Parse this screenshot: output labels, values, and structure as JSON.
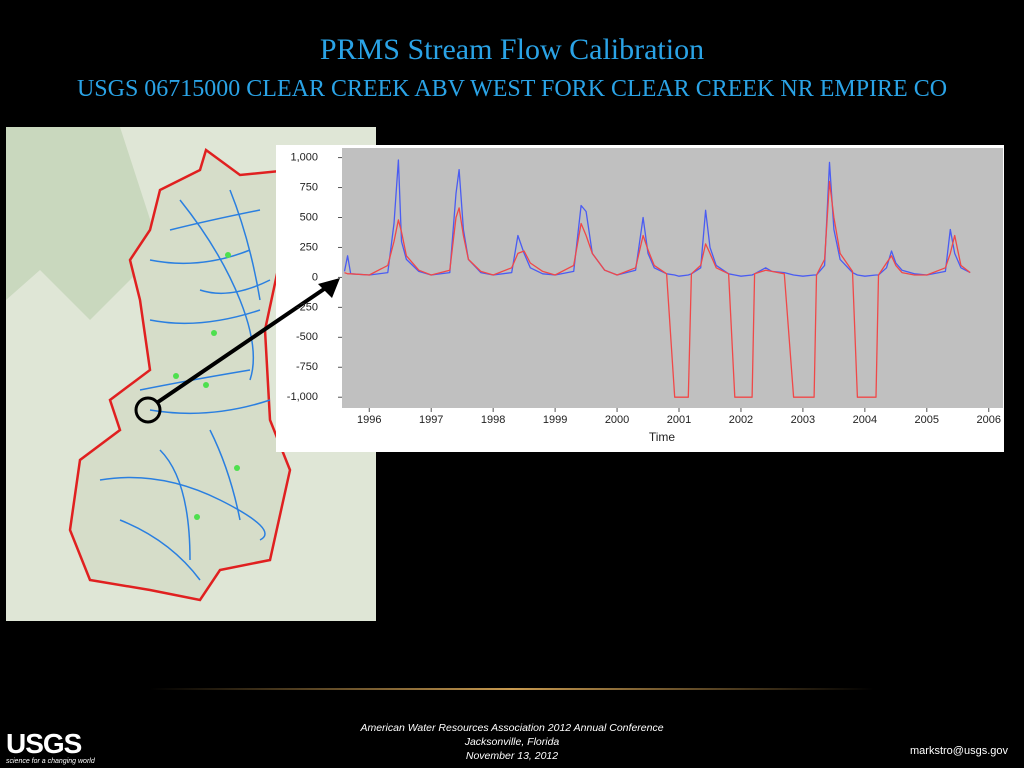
{
  "slide": {
    "title": "PRMS Stream Flow Calibration",
    "subtitle": "USGS 06715000 CLEAR CREEK ABV WEST FORK CLEAR CREEK NR EMPIRE CO",
    "footer": [
      "American Water Resources Association 2012 Annual Conference",
      "Jacksonville, Florida",
      "November 13, 2012"
    ],
    "email": "markstro@usgs.gov",
    "logo": {
      "text": "USGS",
      "tagline": "science for a changing world"
    }
  },
  "chart_data": {
    "type": "line",
    "x_label": "Time",
    "x": [
      1995.6,
      1995.65,
      1995.7,
      1996.0,
      1996.3,
      1996.4,
      1996.47,
      1996.52,
      1996.6,
      1996.8,
      1997.0,
      1997.3,
      1997.4,
      1997.45,
      1997.52,
      1997.6,
      1997.8,
      1998.0,
      1998.3,
      1998.4,
      1998.5,
      1998.6,
      1998.8,
      1999.0,
      1999.3,
      1999.42,
      1999.5,
      1999.6,
      1999.8,
      2000.0,
      2000.3,
      2000.42,
      2000.5,
      2000.6,
      2000.8,
      2000.93,
      2001.0,
      2001.15,
      2001.2,
      2001.35,
      2001.43,
      2001.5,
      2001.6,
      2001.8,
      2001.9,
      2002.0,
      2002.18,
      2002.22,
      2002.4,
      2002.5,
      2002.7,
      2002.85,
      2003.0,
      2003.18,
      2003.22,
      2003.35,
      2003.43,
      2003.5,
      2003.6,
      2003.8,
      2003.88,
      2004.0,
      2004.18,
      2004.22,
      2004.35,
      2004.43,
      2004.5,
      2004.6,
      2004.8,
      2005.0,
      2005.3,
      2005.38,
      2005.45,
      2005.55,
      2005.7
    ],
    "series": [
      {
        "color": "#4a5cf2",
        "values": [
          50,
          180,
          30,
          20,
          40,
          450,
          980,
          300,
          150,
          50,
          20,
          40,
          700,
          900,
          400,
          150,
          40,
          20,
          40,
          350,
          200,
          80,
          30,
          20,
          50,
          600,
          550,
          200,
          60,
          20,
          60,
          500,
          200,
          80,
          30,
          20,
          10,
          20,
          30,
          80,
          560,
          250,
          100,
          30,
          20,
          10,
          20,
          30,
          80,
          50,
          40,
          20,
          10,
          20,
          20,
          100,
          960,
          400,
          150,
          40,
          20,
          10,
          20,
          20,
          80,
          220,
          120,
          60,
          30,
          20,
          50,
          400,
          200,
          80,
          40
        ]
      },
      {
        "color": "#f04848",
        "values": [
          40,
          30,
          30,
          20,
          100,
          300,
          480,
          380,
          180,
          60,
          20,
          60,
          500,
          580,
          350,
          150,
          50,
          20,
          80,
          200,
          220,
          120,
          50,
          20,
          100,
          450,
          350,
          200,
          60,
          20,
          80,
          350,
          230,
          100,
          30,
          -1000,
          -1000,
          -1000,
          30,
          100,
          280,
          200,
          80,
          30,
          -1000,
          -1000,
          -1000,
          30,
          60,
          50,
          30,
          -1000,
          -1000,
          -1000,
          20,
          150,
          800,
          500,
          200,
          50,
          -1000,
          -1000,
          -1000,
          20,
          120,
          180,
          100,
          40,
          20,
          20,
          80,
          200,
          350,
          100,
          40
        ]
      }
    ],
    "xlim": [
      1995.56,
      2006.23
    ],
    "xticks": [
      1996,
      1997,
      1998,
      1999,
      2000,
      2001,
      2002,
      2003,
      2004,
      2005,
      2006
    ],
    "ylim": [
      -1090,
      1080
    ],
    "yticks": [
      {
        "value": 1000,
        "label": "1,000"
      },
      750,
      500,
      250,
      0,
      -250,
      -500,
      -750,
      {
        "value": -1000,
        "label": "-1,000"
      }
    ]
  }
}
